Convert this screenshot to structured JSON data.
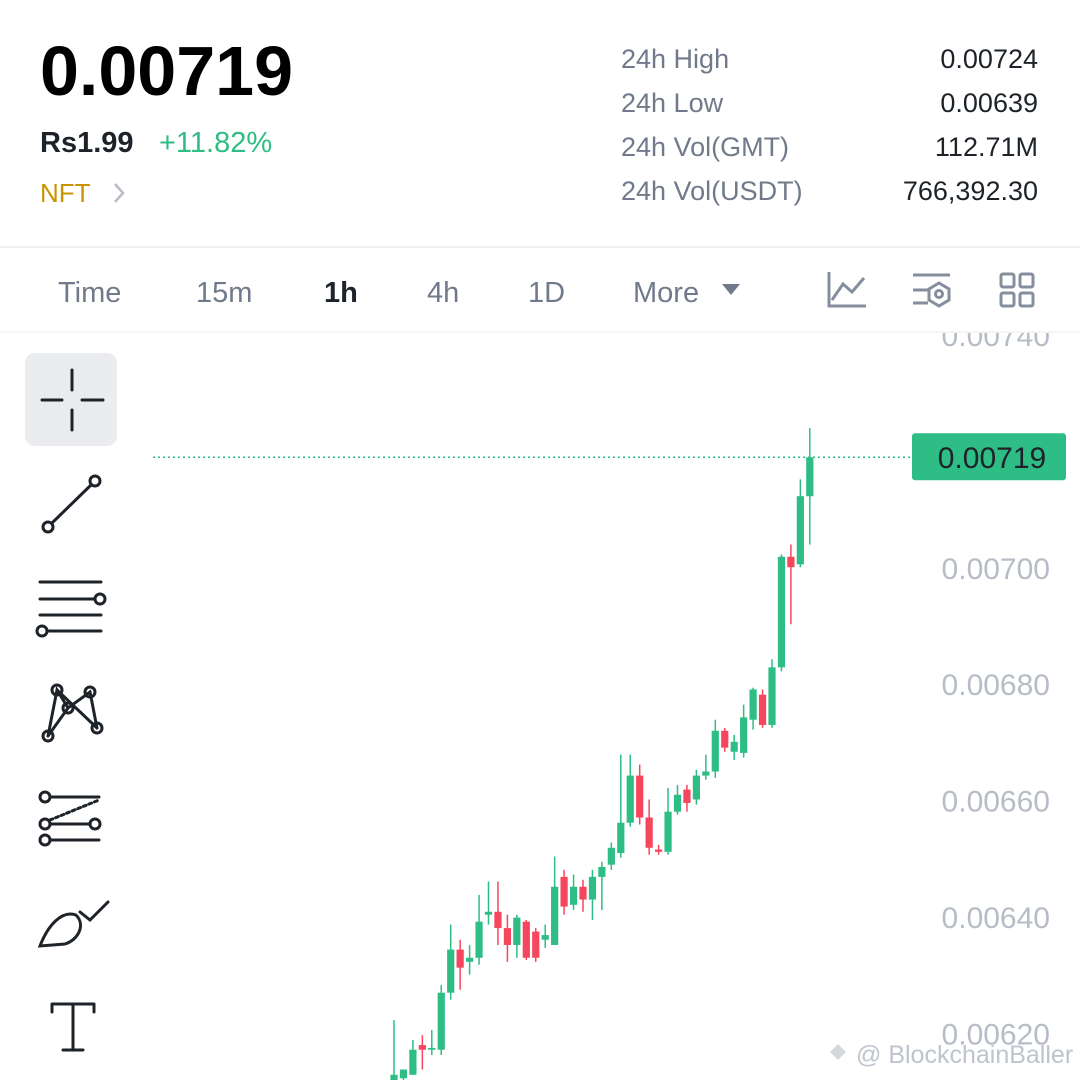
{
  "header": {
    "price": "0.00719",
    "fiat": "Rs1.99",
    "change": "+11.82%",
    "tag": "NFT"
  },
  "stats": [
    {
      "label": "24h High",
      "value": "0.00724"
    },
    {
      "label": "24h Low",
      "value": "0.00639"
    },
    {
      "label": "24h Vol(GMT)",
      "value": "112.71M"
    },
    {
      "label": "24h Vol(USDT)",
      "value": "766,392.30"
    }
  ],
  "tabs": [
    "Time",
    "15m",
    "1h",
    "4h",
    "1D",
    "More"
  ],
  "watermark": "@ BlockchainBaller",
  "chart_data": {
    "type": "candlestick",
    "open": [
      0.00612,
      0.006123,
      0.006129,
      0.00618,
      0.006172,
      0.006172,
      0.00627,
      0.006344,
      0.006323,
      0.00633,
      0.006404,
      0.006409,
      0.006381,
      0.006352,
      0.006392,
      0.006375,
      0.006361,
      0.006352,
      0.006469,
      0.006421,
      0.006452,
      0.00643,
      0.006469,
      0.00649,
      0.00651,
      0.006562,
      0.006643,
      0.006571,
      0.006516,
      0.006512,
      0.006581,
      0.006619,
      0.006602,
      0.006643,
      0.00665,
      0.00672,
      0.006684,
      0.006682,
      0.006739,
      0.006782,
      0.00673,
      0.006829,
      0.007019,
      0.007006,
      0.007123
    ],
    "high": [
      0.006223,
      0.006138,
      0.006189,
      0.006197,
      0.006206,
      0.006283,
      0.006387,
      0.006361,
      0.006352,
      0.006438,
      0.006461,
      0.006461,
      0.006404,
      0.006404,
      0.006395,
      0.006381,
      0.006387,
      0.006504,
      0.006481,
      0.006473,
      0.006464,
      0.006481,
      0.006495,
      0.006528,
      0.006679,
      0.006679,
      0.006662,
      0.006602,
      0.006524,
      0.006622,
      0.006627,
      0.006627,
      0.006653,
      0.006679,
      0.006739,
      0.006725,
      0.006713,
      0.006765,
      0.006794,
      0.006791,
      0.006843,
      0.007023,
      0.00704,
      0.007152,
      0.00724
    ],
    "low": [
      0.00612,
      0.00612,
      0.006129,
      0.006138,
      0.006163,
      0.006163,
      0.006258,
      0.006275,
      0.006301,
      0.006318,
      0.006387,
      0.006352,
      0.006323,
      0.00633,
      0.006326,
      0.006323,
      0.006347,
      0.006352,
      0.006404,
      0.006412,
      0.006409,
      0.006395,
      0.006412,
      0.006481,
      0.006502,
      0.006555,
      0.006559,
      0.006507,
      0.006507,
      0.006507,
      0.006576,
      0.006581,
      0.006593,
      0.006636,
      0.006639,
      0.006684,
      0.00667,
      0.006674,
      0.006722,
      0.006725,
      0.006725,
      0.006822,
      0.006903,
      0.007001,
      0.00704
    ],
    "close": [
      0.006129,
      0.006138,
      0.006172,
      0.006172,
      0.006175,
      0.00627,
      0.006344,
      0.006313,
      0.00633,
      0.006392,
      0.006409,
      0.006381,
      0.006352,
      0.006399,
      0.00633,
      0.00633,
      0.006369,
      0.006452,
      0.006418,
      0.006452,
      0.00643,
      0.006469,
      0.006486,
      0.006519,
      0.006562,
      0.006643,
      0.006571,
      0.006519,
      0.006512,
      0.006581,
      0.00661,
      0.006596,
      0.006643,
      0.00665,
      0.00672,
      0.006691,
      0.006701,
      0.006743,
      0.006791,
      0.00673,
      0.006829,
      0.007019,
      0.007001,
      0.007123,
      0.00719
    ],
    "up_color": "#2ebd85",
    "down_color": "#f6465d",
    "ylim": [
      0.00612,
      0.0074
    ],
    "yticks": [
      {
        "value": 0.0074,
        "label": "0.00740"
      },
      {
        "value": 0.007,
        "label": "0.00700"
      },
      {
        "value": 0.0068,
        "label": "0.00680"
      },
      {
        "value": 0.0066,
        "label": "0.00660"
      },
      {
        "value": 0.0064,
        "label": "0.00640"
      },
      {
        "value": 0.0062,
        "label": "0.00620"
      }
    ],
    "last_price": 0.00719
  }
}
